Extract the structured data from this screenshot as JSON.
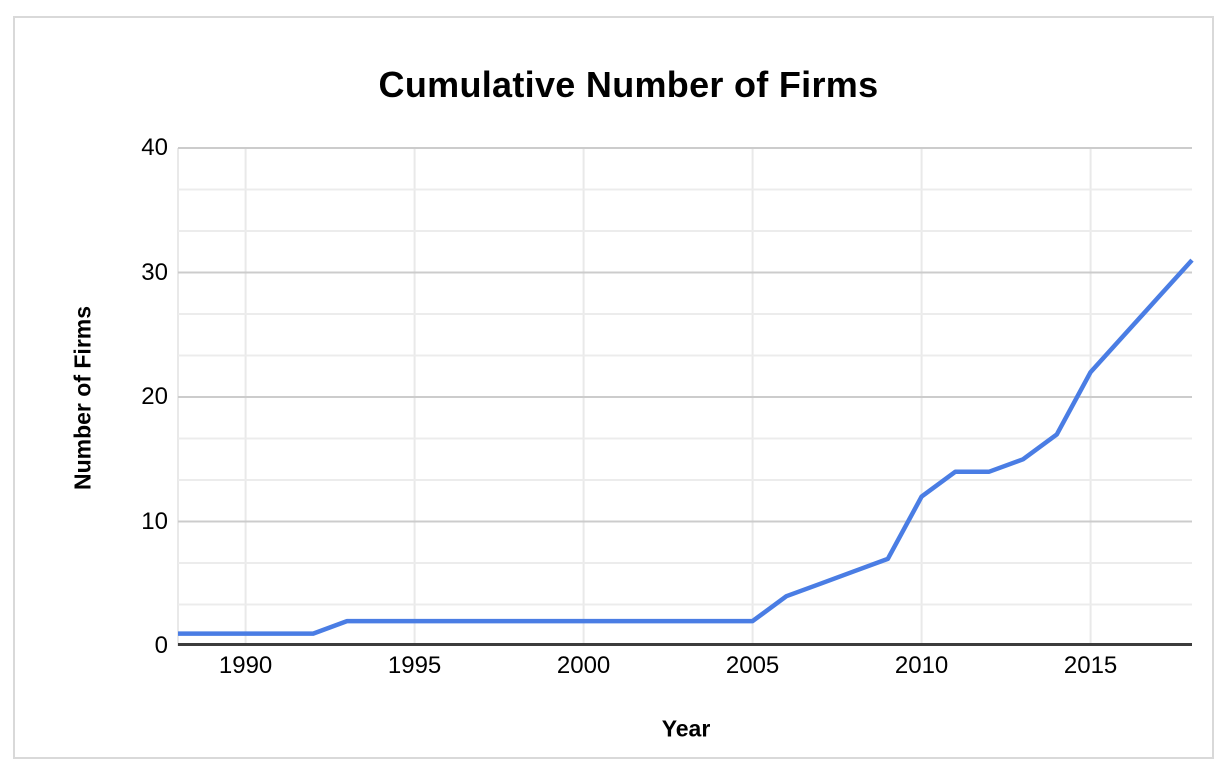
{
  "chart_data": {
    "type": "line",
    "title": "Cumulative Number of Firms",
    "xlabel": "Year",
    "ylabel": "Number of Firms",
    "x": [
      1988,
      1989,
      1990,
      1991,
      1992,
      1993,
      1994,
      1995,
      1996,
      1997,
      1998,
      1999,
      2000,
      2001,
      2002,
      2003,
      2004,
      2005,
      2006,
      2007,
      2008,
      2009,
      2010,
      2011,
      2012,
      2013,
      2014,
      2015,
      2016,
      2017,
      2018
    ],
    "series": [
      {
        "name": "Number of Firms",
        "values": [
          1,
          1,
          1,
          1,
          1,
          2,
          2,
          2,
          2,
          2,
          2,
          2,
          2,
          2,
          2,
          2,
          2,
          2,
          4,
          5,
          6,
          7,
          12,
          14,
          14,
          15,
          17,
          22,
          25,
          28,
          31
        ]
      }
    ],
    "xlim": [
      1988,
      2018
    ],
    "ylim": [
      0,
      40
    ],
    "x_ticks": [
      1990,
      1995,
      2000,
      2005,
      2010,
      2015
    ],
    "y_ticks": [
      0,
      10,
      20,
      30,
      40
    ],
    "y_minor_divisions": 3,
    "grid": "on",
    "legend": "none",
    "colors": {
      "line": "#4a7de4",
      "grid_major": "#cccccc",
      "grid_minor": "#ececec",
      "grid_vertical": "#e9e9e9",
      "axis": "#3c3c3c",
      "text": "#000000",
      "card_border": "#d9d9d9",
      "background": "#ffffff"
    }
  }
}
